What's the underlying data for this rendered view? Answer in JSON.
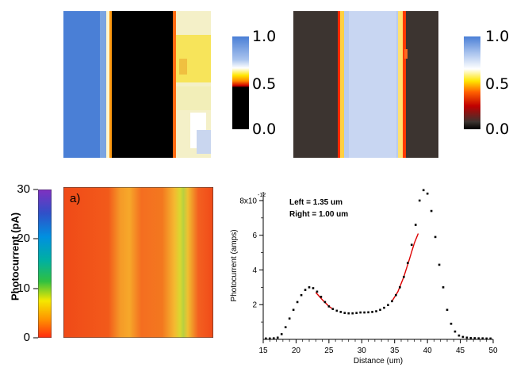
{
  "top_colorbar_left": {
    "ticks": [
      "1.0",
      "0.5",
      "0.0"
    ]
  },
  "top_colorbar_right": {
    "ticks": [
      "1.0",
      "0.5",
      "0.0"
    ]
  },
  "photocurrent_colorbar": {
    "label": "Photocurrent (pA)",
    "ticks": [
      "30",
      "20",
      "10",
      "0"
    ]
  },
  "photocurrent_map": {
    "panel_label": "a)"
  },
  "chart_data": {
    "type": "scatter",
    "xlabel": "Distance (um)",
    "ylabel": "Photocurrent (amps)",
    "xlim": [
      15,
      50
    ],
    "ylim": [
      0,
      8.5
    ],
    "x_ticks": [
      "15",
      "20",
      "25",
      "30",
      "35",
      "40",
      "45",
      "50"
    ],
    "y_ticks": [
      "2",
      "4",
      "6",
      "8x10"
    ],
    "y_exponent": "-12",
    "annotations": [
      "Left = 1.35 um",
      "Right = 1.00 um"
    ],
    "series": [
      {
        "x": [
          15.4,
          16.0,
          16.6,
          17.2,
          17.8,
          18.4,
          19.0,
          19.6,
          20.2,
          20.8,
          21.4,
          22.0,
          22.6,
          23.2,
          23.8,
          24.4,
          25.0,
          25.6,
          26.2,
          26.8,
          27.4,
          28.0,
          28.6,
          29.2,
          29.8,
          30.4,
          31.0,
          31.6,
          32.2,
          32.8,
          33.4,
          34.0,
          34.6,
          35.2,
          35.8,
          36.4,
          37.0,
          37.6,
          38.2,
          38.8,
          39.4,
          40.0,
          40.6,
          41.2,
          41.8,
          42.4,
          43.0,
          43.6,
          44.2,
          44.8,
          45.4,
          46.0,
          46.6,
          47.2,
          47.8,
          48.4,
          49.0,
          49.6
        ],
        "values": [
          0.05,
          0.05,
          0.06,
          0.1,
          0.3,
          0.7,
          1.2,
          1.7,
          2.15,
          2.55,
          2.85,
          3.0,
          2.95,
          2.75,
          2.45,
          2.15,
          1.9,
          1.75,
          1.65,
          1.58,
          1.52,
          1.5,
          1.5,
          1.52,
          1.55,
          1.55,
          1.56,
          1.58,
          1.62,
          1.7,
          1.82,
          1.98,
          2.2,
          2.55,
          3.0,
          3.6,
          4.4,
          5.45,
          6.6,
          8.0,
          8.6,
          8.4,
          7.4,
          5.9,
          4.3,
          3.0,
          1.7,
          0.9,
          0.45,
          0.22,
          0.14,
          0.1,
          0.08,
          0.07,
          0.06,
          0.06,
          0.05,
          0.05
        ]
      }
    ],
    "fits": [
      {
        "color": "#dd0000",
        "x": [
          23.0,
          24.0,
          25.0,
          25.6
        ],
        "values": [
          2.7,
          2.28,
          1.9,
          1.75
        ]
      },
      {
        "color": "#dd0000",
        "x": [
          34.6,
          35.5,
          36.4,
          37.2,
          38.0,
          38.6
        ],
        "values": [
          2.2,
          2.75,
          3.6,
          4.55,
          5.55,
          6.1
        ]
      }
    ]
  }
}
